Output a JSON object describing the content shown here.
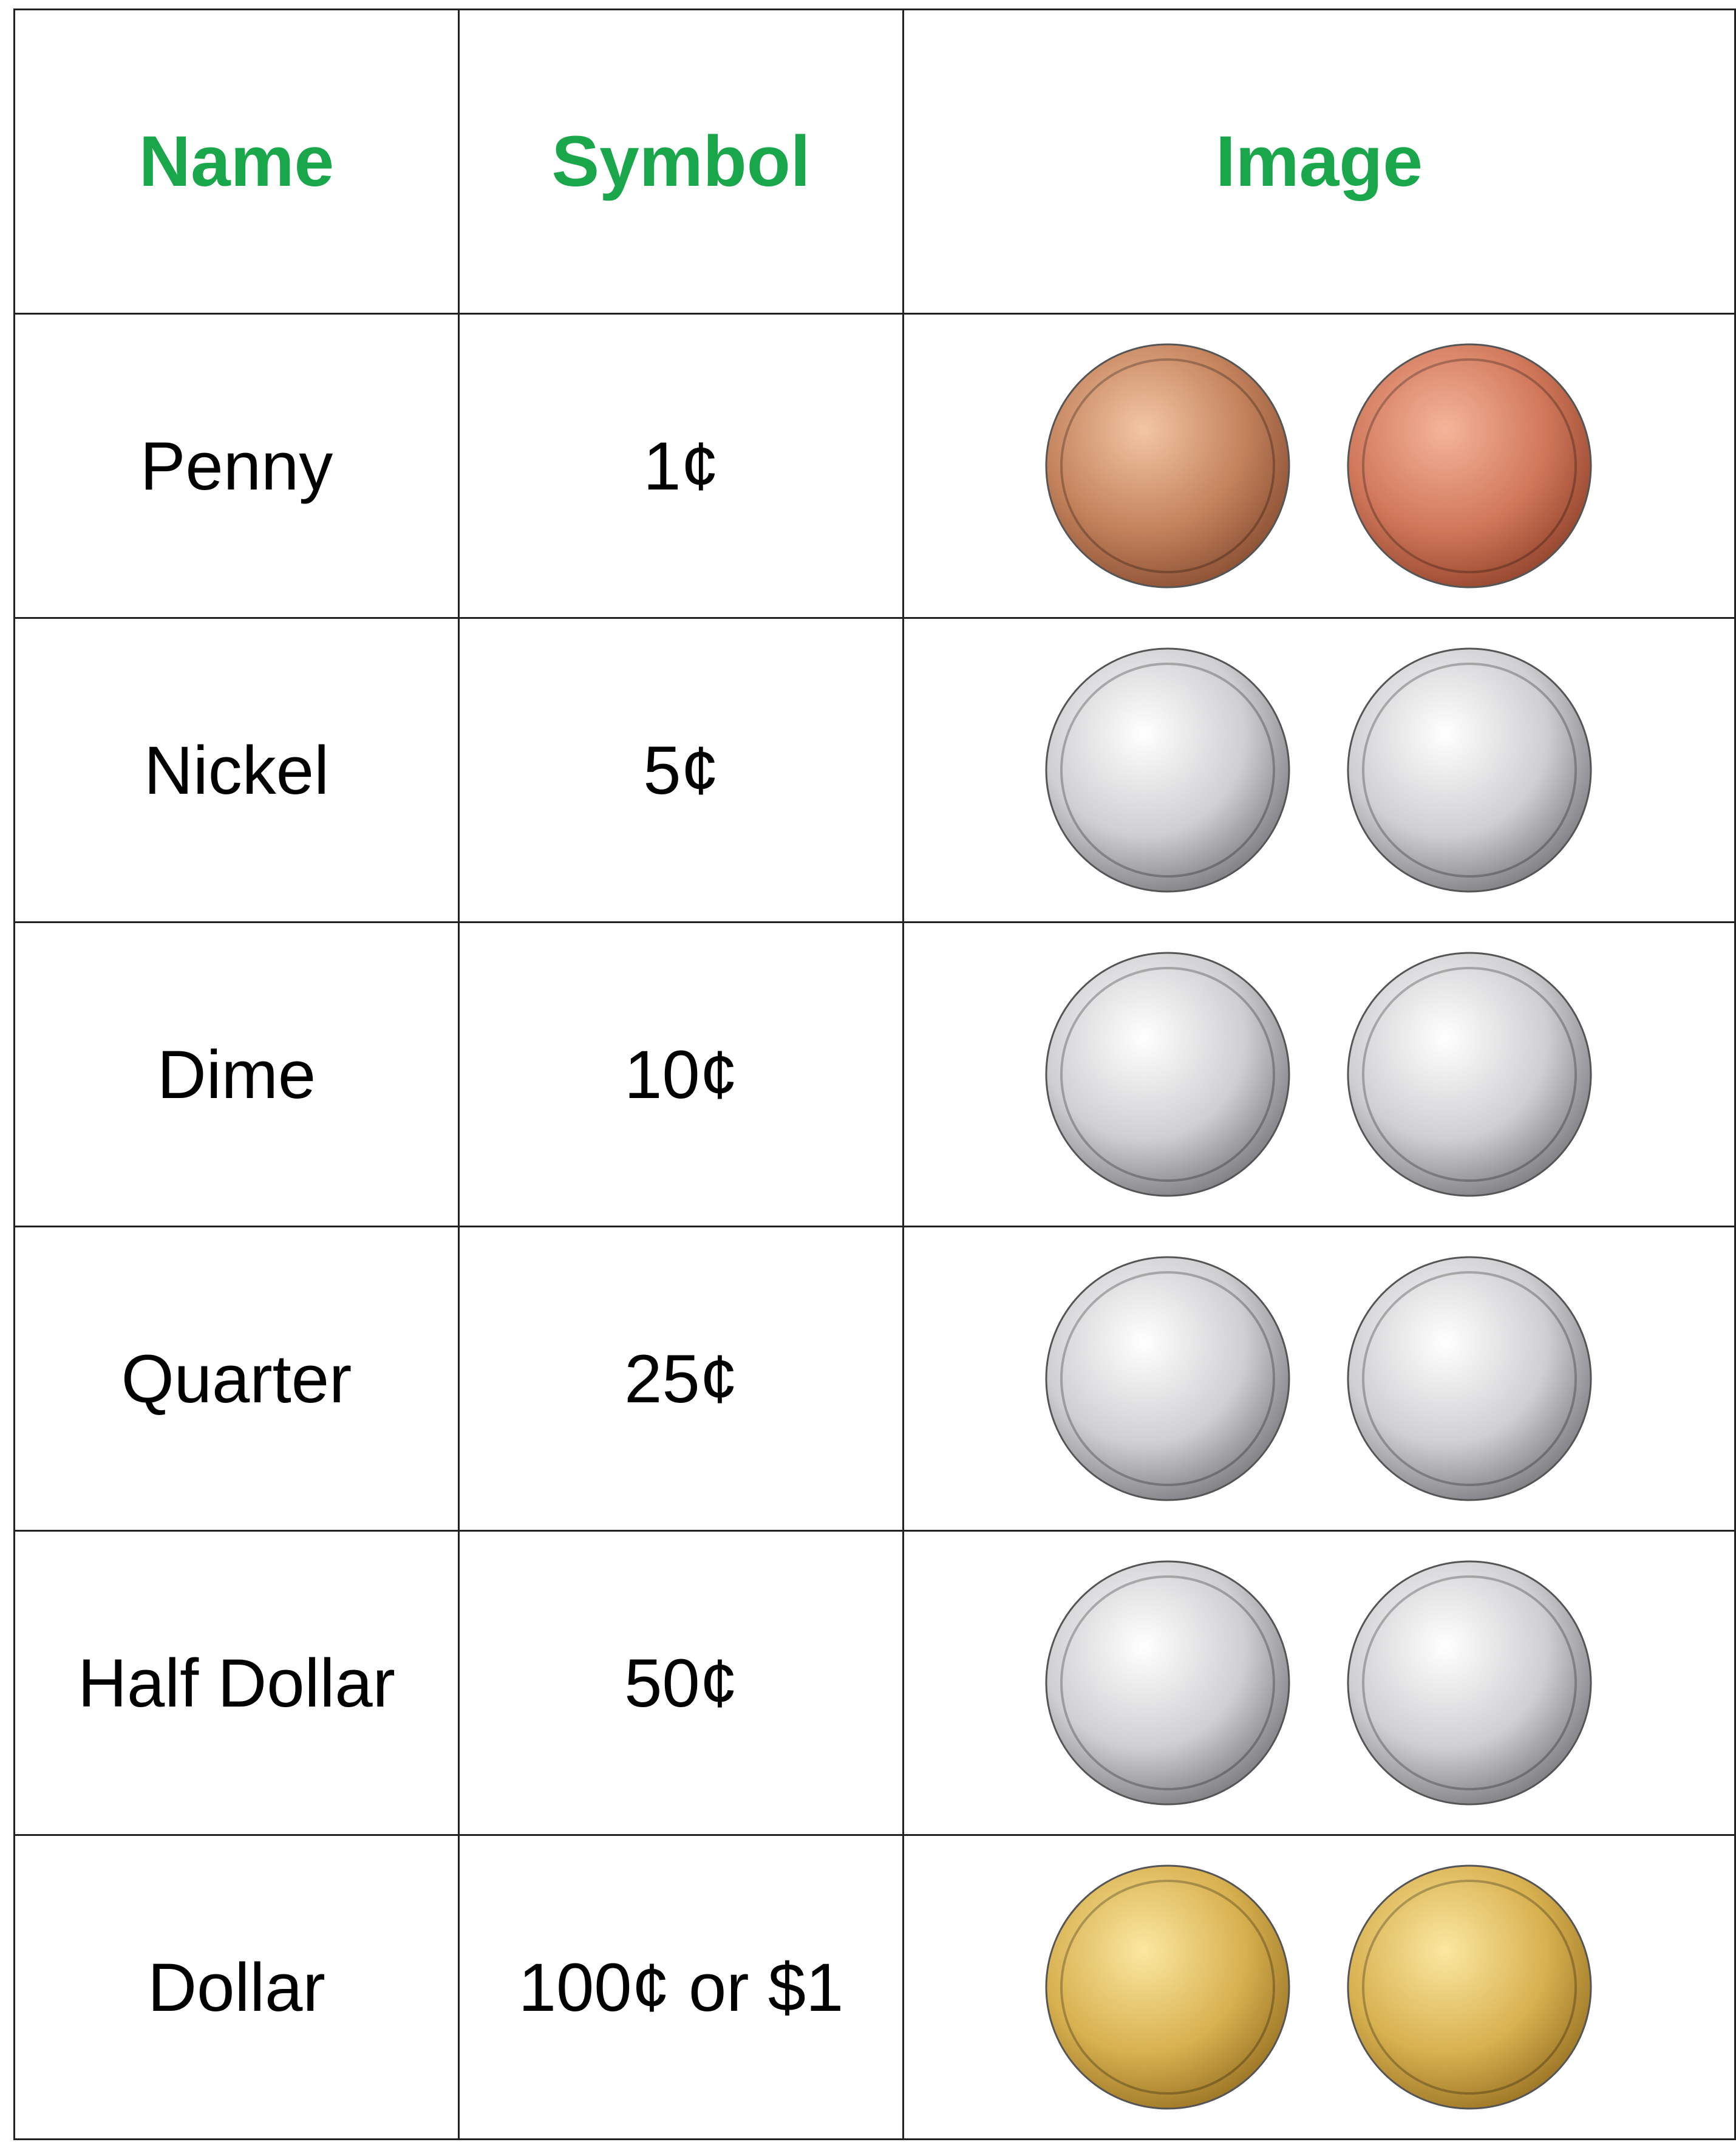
{
  "table": {
    "header": [
      "Name",
      "Symbol",
      "Image"
    ],
    "rows": [
      [
        "Penny",
        "1¢"
      ],
      [
        "Nickel",
        "5¢"
      ],
      [
        "Dime",
        "10¢"
      ],
      [
        "Quarter",
        "25¢"
      ],
      [
        "Half Dollar",
        "50¢"
      ],
      [
        "Dollar",
        "100¢ or $1"
      ]
    ]
  }
}
